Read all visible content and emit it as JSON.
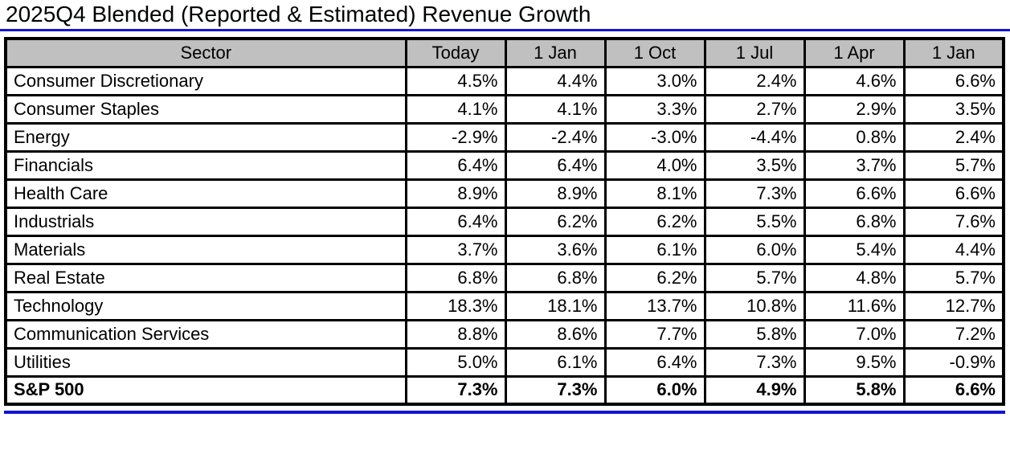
{
  "title": "2025Q4 Blended (Reported & Estimated) Revenue Growth",
  "colors": {
    "accent_blue": "#1414d2",
    "header_bg": "#c0c0c0",
    "border_black": "#000000",
    "text": "#000000",
    "background": "#ffffff"
  },
  "chart_data": {
    "type": "table",
    "title": "2025Q4 Blended (Reported & Estimated) Revenue Growth",
    "columns": [
      "Sector",
      "Today",
      "1 Jan",
      "1 Oct",
      "1 Jul",
      "1 Apr",
      "1 Jan"
    ],
    "rows": [
      [
        "Consumer Discretionary",
        "4.5%",
        "4.4%",
        "3.0%",
        "2.4%",
        "4.6%",
        "6.6%"
      ],
      [
        "Consumer Staples",
        "4.1%",
        "4.1%",
        "3.3%",
        "2.7%",
        "2.9%",
        "3.5%"
      ],
      [
        "Energy",
        "-2.9%",
        "-2.4%",
        "-3.0%",
        "-4.4%",
        "0.8%",
        "2.4%"
      ],
      [
        "Financials",
        "6.4%",
        "6.4%",
        "4.0%",
        "3.5%",
        "3.7%",
        "5.7%"
      ],
      [
        "Health Care",
        "8.9%",
        "8.9%",
        "8.1%",
        "7.3%",
        "6.6%",
        "6.6%"
      ],
      [
        "Industrials",
        "6.4%",
        "6.2%",
        "6.2%",
        "5.5%",
        "6.8%",
        "7.6%"
      ],
      [
        "Materials",
        "3.7%",
        "3.6%",
        "6.1%",
        "6.0%",
        "5.4%",
        "4.4%"
      ],
      [
        "Real Estate",
        "6.8%",
        "6.8%",
        "6.2%",
        "5.7%",
        "4.8%",
        "5.7%"
      ],
      [
        "Technology",
        "18.3%",
        "18.1%",
        "13.7%",
        "10.8%",
        "11.6%",
        "12.7%"
      ],
      [
        "Communication Services",
        "8.8%",
        "8.6%",
        "7.7%",
        "5.8%",
        "7.0%",
        "7.2%"
      ],
      [
        "Utilities",
        "5.0%",
        "6.1%",
        "6.4%",
        "7.3%",
        "9.5%",
        "-0.9%"
      ],
      [
        "S&P 500",
        "7.3%",
        "7.3%",
        "6.0%",
        "4.9%",
        "5.8%",
        "6.6%"
      ]
    ],
    "bold_rows": [
      "S&P 500"
    ],
    "layout": {
      "header_background": "#c0c0c0",
      "grid": true,
      "sector_column_align": "left",
      "value_columns_align": "right"
    }
  }
}
